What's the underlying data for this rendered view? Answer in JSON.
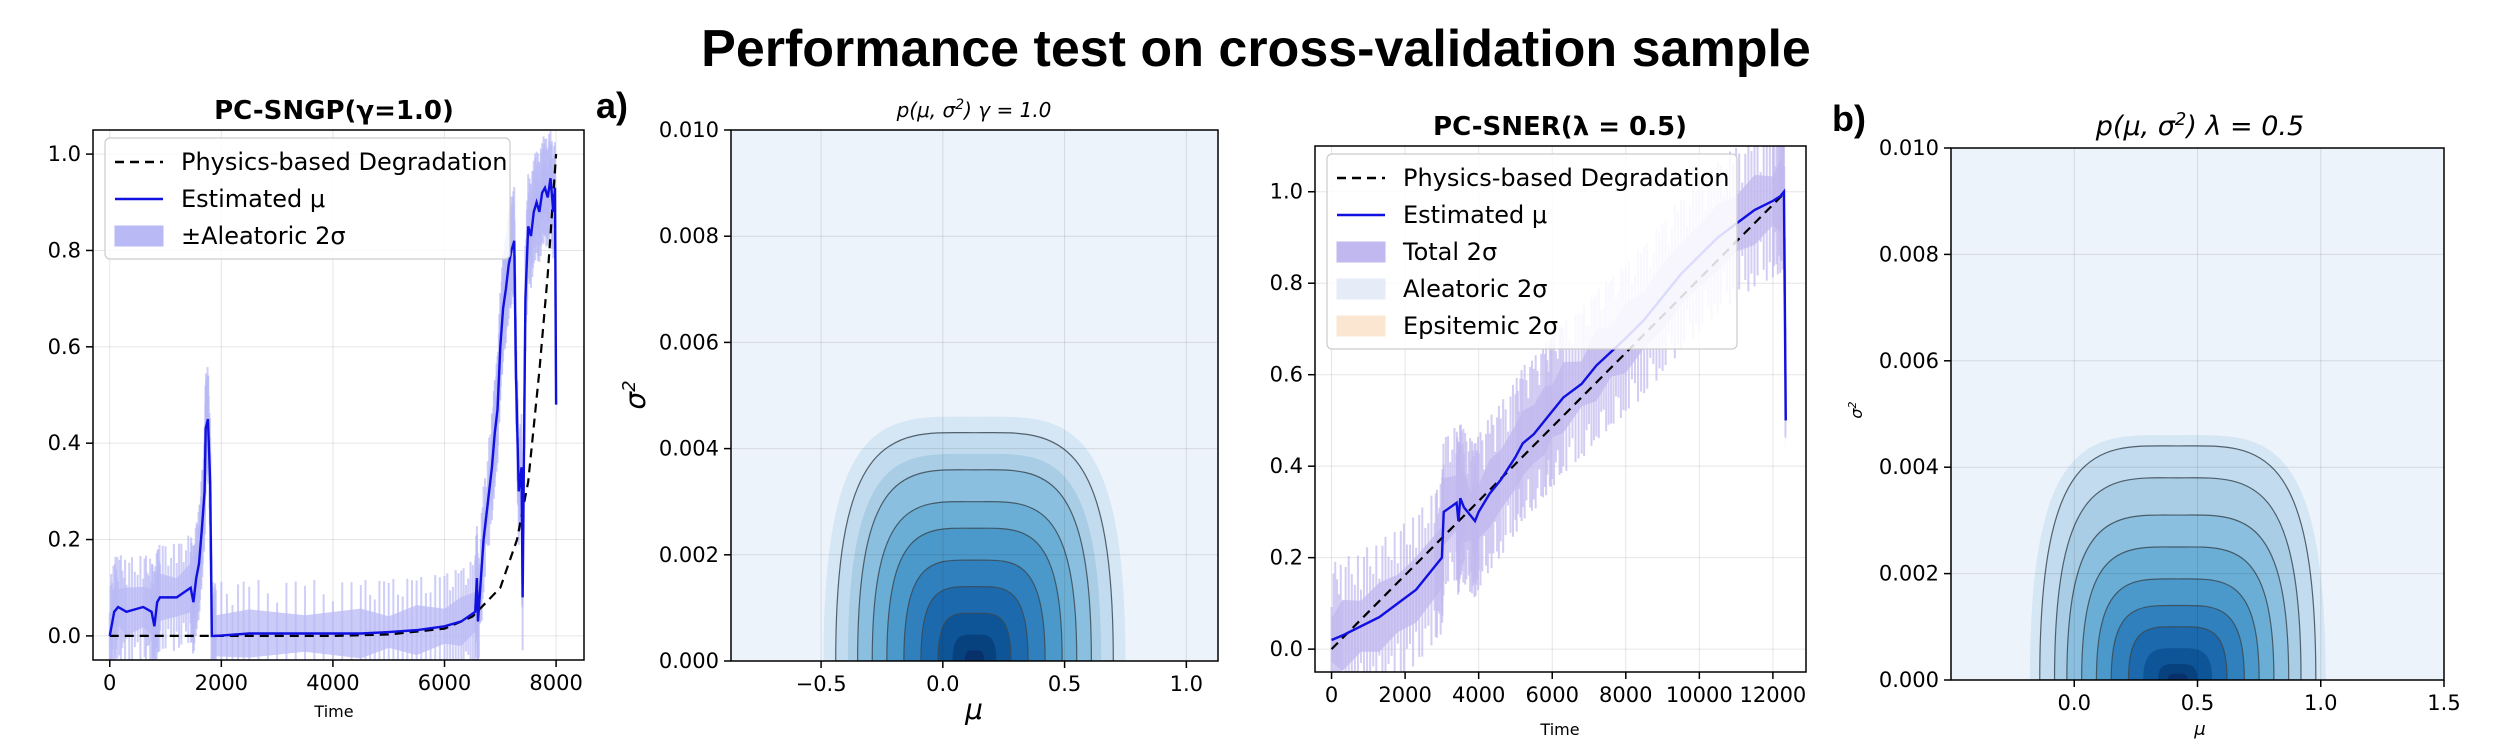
{
  "suptitle": "Performance test on cross-validation sample",
  "chart_data": [
    {
      "type": "line",
      "id": "p1",
      "title": "PC-SNGP(γ=1.0)",
      "xlabel": "Time",
      "ylabel": "",
      "xlim": [
        -300,
        8500
      ],
      "ylim": [
        -0.05,
        1.05
      ],
      "xticks": [
        0,
        2000,
        4000,
        6000,
        8000
      ],
      "xtick_labels": [
        "0",
        "2000",
        "4000",
        "6000",
        "8000"
      ],
      "yticks": [
        0.0,
        0.2,
        0.4,
        0.6,
        0.8,
        1.0
      ],
      "ytick_labels": [
        "0.0",
        "0.2",
        "0.4",
        "0.6",
        "0.8",
        "1.0"
      ],
      "grid": true,
      "legend_position": "top-left",
      "legend": [
        {
          "label": "Physics-based Degradation",
          "kind": "dashed",
          "color": "#000000"
        },
        {
          "label": "Estimated μ",
          "kind": "line",
          "color": "#1010e0"
        },
        {
          "label": "±Aleatoric 2σ",
          "kind": "patch",
          "color": "#b9b9f5"
        }
      ],
      "series": [
        {
          "name": "Physics-based Degradation",
          "style": "dashed",
          "color": "#000000",
          "x": [
            0,
            4000,
            5000,
            6000,
            6500,
            7000,
            7300,
            7500,
            7700,
            7850,
            8000
          ],
          "y": [
            0.0,
            0.0,
            0.003,
            0.015,
            0.04,
            0.1,
            0.2,
            0.32,
            0.55,
            0.75,
            1.0
          ]
        },
        {
          "name": "Estimated μ",
          "style": "solid",
          "color": "#1010e0",
          "x": [
            0,
            80,
            150,
            300,
            600,
            750,
            800,
            850,
            900,
            1200,
            1450,
            1500,
            1550,
            1600,
            1650,
            1700,
            1720,
            1760,
            1800,
            1830,
            1900,
            2500,
            3500,
            4500,
            5000,
            5500,
            6000,
            6300,
            6550,
            6580,
            6600,
            6700,
            6850,
            6900,
            6950,
            7000,
            7050,
            7100,
            7150,
            7200,
            7250,
            7280,
            7330,
            7380,
            7400,
            7450,
            7500,
            7550,
            7600,
            7650,
            7700,
            7750,
            7800,
            7850,
            7900,
            7950,
            7980,
            8000
          ],
          "y": [
            0.0,
            0.05,
            0.06,
            0.05,
            0.06,
            0.05,
            0.02,
            0.07,
            0.08,
            0.08,
            0.1,
            0.07,
            0.12,
            0.15,
            0.22,
            0.3,
            0.43,
            0.45,
            0.32,
            0.0,
            0.0,
            0.005,
            0.005,
            0.005,
            0.008,
            0.012,
            0.02,
            0.03,
            0.05,
            0.12,
            0.03,
            0.2,
            0.35,
            0.42,
            0.47,
            0.6,
            0.68,
            0.72,
            0.77,
            0.8,
            0.82,
            0.55,
            0.3,
            0.35,
            0.08,
            0.7,
            0.85,
            0.83,
            0.88,
            0.9,
            0.88,
            0.92,
            0.93,
            0.91,
            0.95,
            0.88,
            0.93,
            0.48
          ]
        },
        {
          "name": "±Aleatoric 2σ band",
          "style": "band",
          "color": "#b9b9f5",
          "halfwidth": 0.04
        }
      ]
    },
    {
      "type": "heatmap",
      "id": "p2",
      "panel_letter": "a)",
      "title": "p(μ, σ²) γ = 1.0",
      "title_parts": {
        "pre": "p(μ, σ",
        "sup": "2",
        "post": ") γ = 1.0"
      },
      "xlabel": "μ",
      "ylabel": {
        "base": "σ",
        "sup": "2"
      },
      "xlim": [
        -0.87,
        1.13
      ],
      "ylim": [
        0.0,
        0.01
      ],
      "xticks": [
        -0.5,
        0.0,
        0.5,
        1.0
      ],
      "xtick_labels": [
        "−0.5",
        "0.0",
        "0.5",
        "1.0"
      ],
      "yticks": [
        0.0,
        0.002,
        0.004,
        0.006,
        0.008,
        0.01
      ],
      "ytick_labels": [
        "0.000",
        "0.002",
        "0.004",
        "0.006",
        "0.008",
        "0.010"
      ],
      "grid": true,
      "contour_center_mu": 0.13,
      "contour_levels": [
        {
          "halfwidth": 0.62,
          "height": 0.0046,
          "fill": "#d5e6f4",
          "line": false
        },
        {
          "halfwidth": 0.57,
          "height": 0.0043,
          "fill": "#c3dbee",
          "line": true
        },
        {
          "halfwidth": 0.52,
          "height": 0.0039,
          "fill": "#a8cde5",
          "line": false
        },
        {
          "halfwidth": 0.48,
          "height": 0.0036,
          "fill": "#8bbfdf",
          "line": true
        },
        {
          "halfwidth": 0.42,
          "height": 0.003,
          "fill": "#6aaed6",
          "line": true
        },
        {
          "halfwidth": 0.36,
          "height": 0.0025,
          "fill": "#4b98ca",
          "line": true
        },
        {
          "halfwidth": 0.29,
          "height": 0.0019,
          "fill": "#2f80bc",
          "line": true
        },
        {
          "halfwidth": 0.22,
          "height": 0.0014,
          "fill": "#1c6aad",
          "line": true
        },
        {
          "halfwidth": 0.15,
          "height": 0.0009,
          "fill": "#0e5598",
          "line": true
        },
        {
          "halfwidth": 0.09,
          "height": 0.0005,
          "fill": "#08427e",
          "line": false
        },
        {
          "halfwidth": 0.04,
          "height": 0.0002,
          "fill": "#08306b",
          "line": false
        }
      ]
    },
    {
      "type": "line",
      "id": "p3",
      "title": "PC-SNER(λ = 0.5)",
      "xlabel": "Time",
      "ylabel": "",
      "xlim": [
        -450,
        12900
      ],
      "ylim": [
        -0.05,
        1.1
      ],
      "xticks": [
        0,
        2000,
        4000,
        6000,
        8000,
        10000,
        12000
      ],
      "xtick_labels": [
        "0",
        "2000",
        "4000",
        "6000",
        "8000",
        "10000",
        "12000"
      ],
      "yticks": [
        0.0,
        0.2,
        0.4,
        0.6,
        0.8,
        1.0
      ],
      "ytick_labels": [
        "0.0",
        "0.2",
        "0.4",
        "0.6",
        "0.8",
        "1.0"
      ],
      "grid": true,
      "legend_position": "top-left",
      "legend": [
        {
          "label": "Physics-based Degradation",
          "kind": "dashed",
          "color": "#000000"
        },
        {
          "label": "Estimated μ",
          "kind": "line",
          "color": "#1010e0"
        },
        {
          "label": "Total 2σ",
          "kind": "patch",
          "color": "#c0b8ee"
        },
        {
          "label": "Aleatoric 2σ",
          "kind": "patch",
          "color": "#e6ebf8"
        },
        {
          "label": "Epsitemic 2σ",
          "kind": "patch",
          "color": "#fbe6d2"
        }
      ],
      "series": [
        {
          "name": "Physics-based Degradation",
          "style": "dashed",
          "color": "#000000",
          "x": [
            0,
            12350
          ],
          "y": [
            0.0,
            1.0
          ]
        },
        {
          "name": "Estimated μ",
          "style": "solid",
          "color": "#1010e0",
          "x": [
            0,
            300,
            800,
            1300,
            1800,
            2300,
            2800,
            3000,
            3050,
            3400,
            3450,
            3500,
            3600,
            3800,
            3900,
            4000,
            4300,
            4600,
            5000,
            5200,
            5500,
            5800,
            6000,
            6300,
            6800,
            7200,
            7600,
            8000,
            8500,
            9000,
            9500,
            10000,
            10500,
            11000,
            11500,
            12000,
            12200,
            12300,
            12350
          ],
          "y": [
            0.02,
            0.03,
            0.05,
            0.07,
            0.1,
            0.13,
            0.18,
            0.2,
            0.3,
            0.32,
            0.28,
            0.33,
            0.31,
            0.29,
            0.28,
            0.3,
            0.34,
            0.37,
            0.42,
            0.45,
            0.47,
            0.5,
            0.52,
            0.55,
            0.58,
            0.62,
            0.65,
            0.68,
            0.72,
            0.77,
            0.82,
            0.86,
            0.9,
            0.93,
            0.96,
            0.98,
            0.99,
            1.0,
            0.5
          ]
        },
        {
          "name": "Total 2σ band",
          "style": "band",
          "color": "#c0b8ee",
          "halfwidth": 0.06
        }
      ]
    },
    {
      "type": "heatmap",
      "id": "p4",
      "panel_letter": "b)",
      "title": "p(μ, σ²) λ = 0.5",
      "title_parts": {
        "pre": "p(μ, σ",
        "sup": "2",
        "post": ") λ = 0.5"
      },
      "xlabel": "μ",
      "ylabel": {
        "base": "σ",
        "sup": "2"
      },
      "xlim": [
        -0.5,
        1.5
      ],
      "ylim": [
        0.0,
        0.01
      ],
      "xticks": [
        0.0,
        0.5,
        1.0,
        1.5
      ],
      "xtick_labels": [
        "0.0",
        "0.5",
        "1.0",
        "1.5"
      ],
      "yticks": [
        0.0,
        0.002,
        0.004,
        0.006,
        0.008,
        0.01
      ],
      "ytick_labels": [
        "0.000",
        "0.002",
        "0.004",
        "0.006",
        "0.008",
        "0.010"
      ],
      "grid": true,
      "contour_center_mu": 0.42,
      "contour_levels": [
        {
          "halfwidth": 0.6,
          "height": 0.0046,
          "fill": "#d5e6f4",
          "line": false
        },
        {
          "halfwidth": 0.56,
          "height": 0.0044,
          "fill": "#c3dbee",
          "line": true
        },
        {
          "halfwidth": 0.5,
          "height": 0.0038,
          "fill": "#a8cde5",
          "line": true
        },
        {
          "halfwidth": 0.45,
          "height": 0.0031,
          "fill": "#8bbfdf",
          "line": true
        },
        {
          "halfwidth": 0.39,
          "height": 0.0025,
          "fill": "#6aaed6",
          "line": true
        },
        {
          "halfwidth": 0.33,
          "height": 0.0019,
          "fill": "#4b98ca",
          "line": true
        },
        {
          "halfwidth": 0.27,
          "height": 0.0014,
          "fill": "#2f80bc",
          "line": true
        },
        {
          "halfwidth": 0.2,
          "height": 0.001,
          "fill": "#1c6aad",
          "line": true
        },
        {
          "halfwidth": 0.14,
          "height": 0.0006,
          "fill": "#0e5598",
          "line": false
        },
        {
          "halfwidth": 0.08,
          "height": 0.0003,
          "fill": "#08427e",
          "line": false
        },
        {
          "halfwidth": 0.04,
          "height": 0.00012,
          "fill": "#08306b",
          "line": false
        }
      ]
    }
  ]
}
